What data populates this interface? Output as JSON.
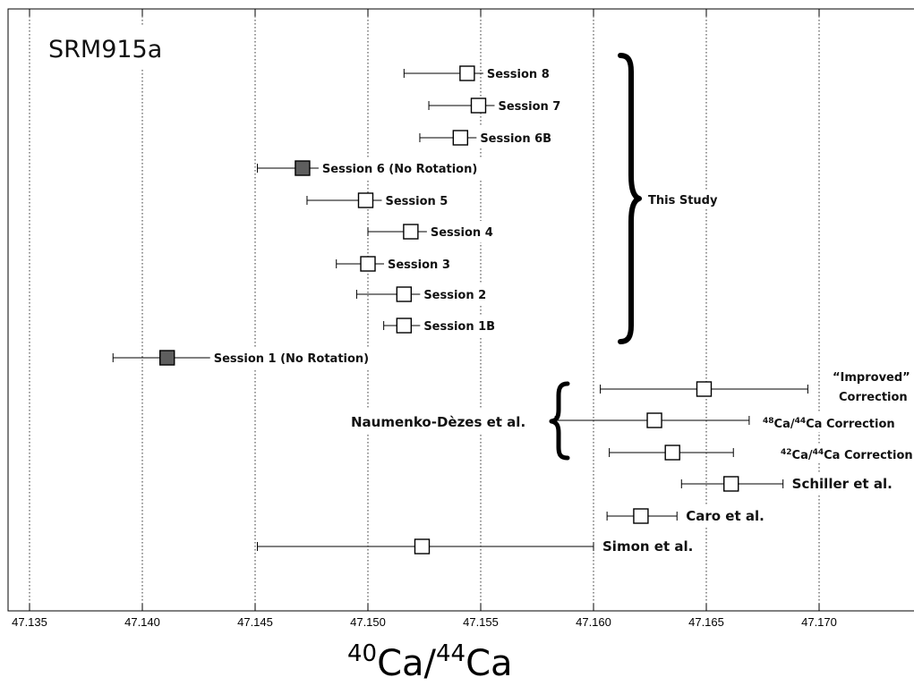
{
  "chart_data": {
    "type": "scatter",
    "title": "SRM915a",
    "xlabel_parts": {
      "sup1": "40",
      "base1": "Ca/",
      "sup2": "44",
      "base2": "Ca"
    },
    "ylabel": "",
    "xlim": [
      47.135,
      47.174
    ],
    "x_ticks": [
      "47.135",
      "47.140",
      "47.145",
      "47.150",
      "47.155",
      "47.160",
      "47.165",
      "47.170"
    ],
    "grid": true,
    "points": [
      {
        "label": "Session 8",
        "x": 47.1544,
        "err_low": 47.1516,
        "err_high": 47.1571,
        "filled": false
      },
      {
        "label": "Session 7",
        "x": 47.1549,
        "err_low": 47.1527,
        "err_high": 47.157,
        "filled": false
      },
      {
        "label": "Session 6B",
        "x": 47.1541,
        "err_low": 47.1523,
        "err_high": 47.1558,
        "filled": false
      },
      {
        "label": "Session 6 (No Rotation)",
        "x": 47.1471,
        "err_low": 47.1451,
        "err_high": 47.1491,
        "filled": true
      },
      {
        "label": "Session 5",
        "x": 47.1499,
        "err_low": 47.1473,
        "err_high": 47.1525,
        "filled": false
      },
      {
        "label": "Session 4",
        "x": 47.1519,
        "err_low": 47.15,
        "err_high": 47.1537,
        "filled": false
      },
      {
        "label": "Session 3",
        "x": 47.15,
        "err_low": 47.1486,
        "err_high": 47.1513,
        "filled": false
      },
      {
        "label": "Session 2",
        "x": 47.1516,
        "err_low": 47.1495,
        "err_high": 47.1537,
        "filled": false
      },
      {
        "label": "Session 1B",
        "x": 47.1516,
        "err_low": 47.1507,
        "err_high": 47.1526,
        "filled": false
      },
      {
        "label": "Session 1 (No Rotation)",
        "x": 47.1411,
        "err_low": 47.1387,
        "err_high": 47.1432,
        "filled": true
      },
      {
        "label": "“Improved” Correction",
        "x": 47.1649,
        "err_low": 47.1603,
        "err_high": 47.1695,
        "filled": false
      },
      {
        "label": "48Ca/44Ca Correction",
        "x": 47.1627,
        "err_low": 47.1583,
        "err_high": 47.1669,
        "filled": false
      },
      {
        "label": "42Ca/44Ca Correction",
        "x": 47.1635,
        "err_low": 47.1607,
        "err_high": 47.1662,
        "filled": false
      },
      {
        "label": "Schiller et al.",
        "x": 47.1661,
        "err_low": 47.1639,
        "err_high": 47.1684,
        "filled": false
      },
      {
        "label": "Caro et al.",
        "x": 47.1621,
        "err_low": 47.1606,
        "err_high": 47.1637,
        "filled": false
      },
      {
        "label": "Simon et al.",
        "x": 47.1524,
        "err_low": 47.1451,
        "err_high": 47.16,
        "filled": false
      }
    ],
    "annotations": {
      "this_study": "This Study",
      "naumenko": "Naumenko-Dèzes et al.",
      "improved_line1": "“Improved”",
      "improved_line2": "Correction",
      "ca48_sup1": "48",
      "ca48_mid": "Ca/",
      "ca48_sup2": "44",
      "ca48_rest": "Ca Correction",
      "ca42_sup1": "42",
      "ca42_mid": "Ca/",
      "ca42_sup2": "44",
      "ca42_rest": "Ca Correction"
    },
    "colors": {
      "filled_marker": "#5e5e5e",
      "open_marker": "#ffffff",
      "line": "#000000"
    }
  }
}
